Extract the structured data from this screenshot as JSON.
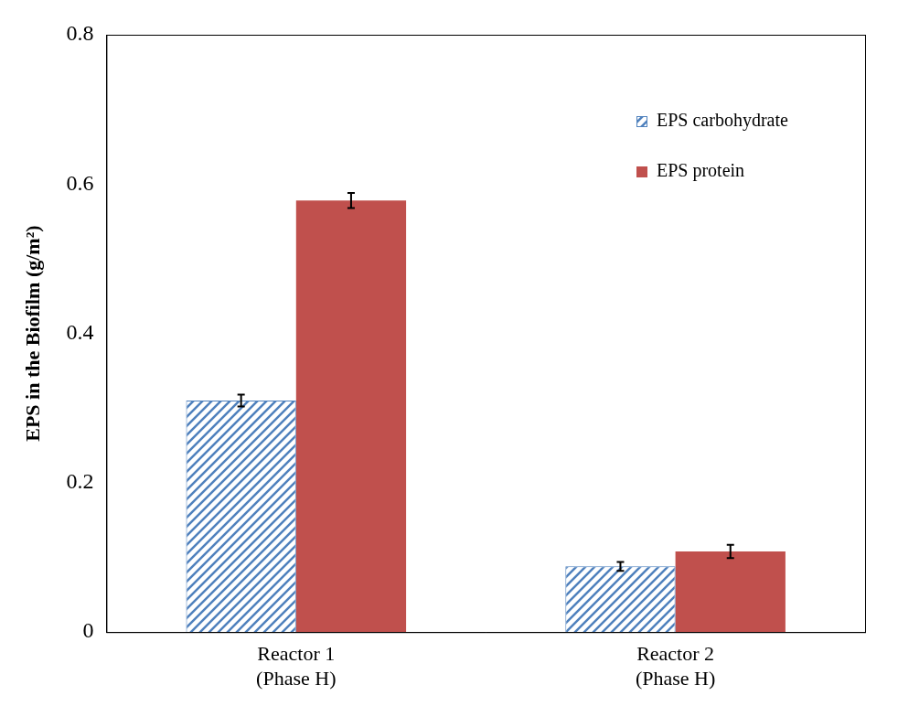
{
  "chart_data": {
    "type": "bar",
    "categories": [
      "Reactor 1\n(Phase H)",
      "Reactor 2\n(Phase H)"
    ],
    "series": [
      {
        "name": "EPS carbohydrate",
        "color": "#4f81bd",
        "values": [
          0.31,
          0.088
        ],
        "errors": [
          0.008,
          0.006
        ]
      },
      {
        "name": "EPS protein",
        "color": "#c0504d",
        "values": [
          0.578,
          0.108
        ],
        "errors": [
          0.01,
          0.009
        ]
      }
    ],
    "y_label": "EPS in the Biofilm (g/m²)",
    "ylim": [
      0,
      0.8
    ],
    "yticks": [
      0,
      0.2,
      0.4,
      0.6,
      0.8
    ],
    "grid": false,
    "legend": "upper right"
  }
}
